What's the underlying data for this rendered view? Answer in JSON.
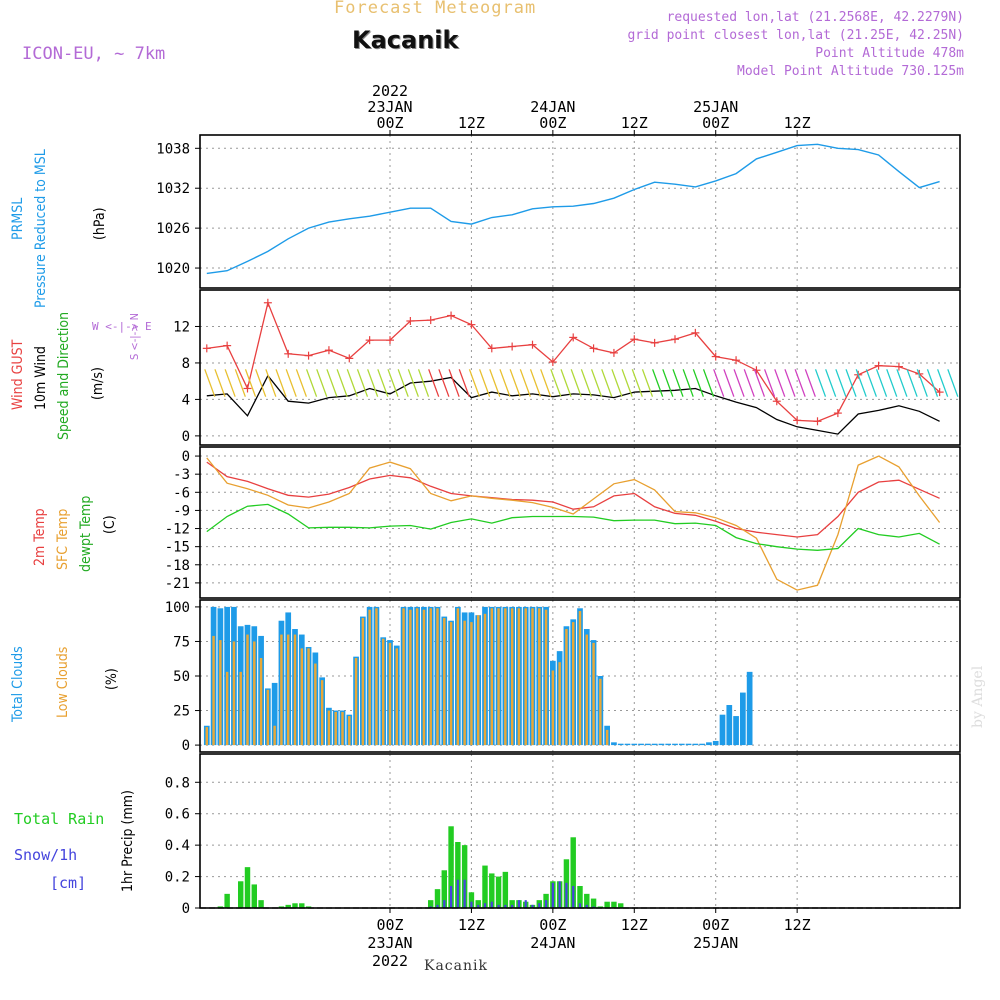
{
  "header": {
    "subtitle": "Forecast Meteogram",
    "location": "Kacanik",
    "model": "ICON-EU, ~ 7km",
    "info_lines": [
      "requested lon,lat (21.2568E, 42.2279N)",
      "grid point closest lon,lat (21.25E, 42.25N)",
      "Point Altitude 478m",
      "Model Point Altitude 730.125m"
    ]
  },
  "time_axis": {
    "top_labels": [
      {
        "lines": [
          "2022",
          "23JAN",
          "00Z"
        ]
      },
      {
        "lines": [
          "12Z"
        ]
      },
      {
        "lines": [
          "24JAN",
          "00Z"
        ]
      },
      {
        "lines": [
          "12Z"
        ]
      },
      {
        "lines": [
          "25JAN",
          "00Z"
        ]
      },
      {
        "lines": [
          "12Z"
        ]
      }
    ],
    "bottom_labels": [
      {
        "lines": [
          "00Z",
          "23JAN",
          "2022"
        ]
      },
      {
        "lines": [
          "12Z"
        ]
      },
      {
        "lines": [
          "00Z",
          "24JAN"
        ]
      },
      {
        "lines": [
          "12Z"
        ]
      },
      {
        "lines": [
          "00Z",
          "25JAN"
        ]
      },
      {
        "lines": [
          "12Z"
        ]
      }
    ]
  },
  "panel_labels": {
    "pressure": {
      "line1": "PRMSL",
      "line2": "Pressure Reduced to MSL",
      "unit": "(hPa)"
    },
    "wind": {
      "line1": "Wind GUST",
      "line2": "10m Wind",
      "line3": "Speed and Direction",
      "unit": "(m/s)",
      "compass": "W <-|-> E",
      "compass2": "S <-|-> N"
    },
    "temp": {
      "line1": "2m Temp",
      "line2": "SFC Temp",
      "line3": "dewpt Temp",
      "unit": "(C)"
    },
    "clouds": {
      "line1": "Total Clouds",
      "line2": "Low Clouds",
      "unit": "(%)"
    },
    "precip": {
      "unit": "1hr Precip (mm)",
      "legend_rain": "Total  Rain",
      "legend_snow": "Snow/1h",
      "legend_snow_unit": "[cm]"
    }
  },
  "footer": {
    "name": "Kacanik",
    "watermark": "by Angel"
  },
  "colors": {
    "pressure": "#1e9be8",
    "gust": "#e84040",
    "wind10": "#000000",
    "t2m": "#e84040",
    "tsfc": "#e8a030",
    "dewpt": "#22cc22",
    "total_cloud": "#1e9be8",
    "low_cloud": "#e8a838",
    "rain": "#22cc22",
    "snow": "#4444dd"
  },
  "chart_data": [
    {
      "type": "line",
      "name": "pressure",
      "x_hours": [
        -27,
        -24,
        -21,
        -18,
        -15,
        -12,
        -9,
        -6,
        -3,
        0,
        3,
        6,
        9,
        12,
        15,
        18,
        21,
        24,
        27,
        30,
        33,
        36,
        39,
        42,
        45,
        48,
        51,
        54,
        57,
        60,
        63,
        66,
        69,
        72,
        75,
        78,
        81
      ],
      "series": [
        {
          "name": "PRMSL",
          "values": [
            1019.2,
            1019.6,
            1021.0,
            1022.5,
            1024.4,
            1026.0,
            1026.9,
            1027.4,
            1027.8,
            1028.4,
            1029.0,
            1029.0,
            1027.0,
            1026.6,
            1027.6,
            1028.0,
            1028.9,
            1029.2,
            1029.3,
            1029.7,
            1030.5,
            1031.8,
            1032.9,
            1032.6,
            1032.2,
            1033.1,
            1034.2,
            1036.4,
            1037.4,
            1038.4,
            1038.6,
            1038.0,
            1037.8,
            1037.0,
            1034.5,
            1032.1,
            1033.0
          ]
        }
      ],
      "ylim": [
        1017,
        1040
      ],
      "yticks": [
        1020,
        1026,
        1032,
        1038
      ]
    },
    {
      "type": "line",
      "name": "wind",
      "x_hours": [
        -27,
        -24,
        -21,
        -18,
        -15,
        -12,
        -9,
        -6,
        -3,
        0,
        3,
        6,
        9,
        12,
        15,
        18,
        21,
        24,
        27,
        30,
        33,
        36,
        39,
        42,
        45,
        48,
        51,
        54,
        57,
        60,
        63,
        66,
        69,
        72,
        75,
        78,
        81
      ],
      "series": [
        {
          "name": "Wind GUST",
          "values": [
            9.6,
            9.9,
            5.2,
            14.6,
            9.0,
            8.8,
            9.4,
            8.5,
            10.5,
            10.5,
            12.6,
            12.7,
            13.2,
            12.2,
            9.6,
            9.8,
            10.0,
            8.1,
            10.8,
            9.6,
            9.1,
            10.6,
            10.2,
            10.6,
            11.3,
            8.7,
            8.3,
            7.2,
            3.8,
            1.7,
            1.6,
            2.5,
            6.7,
            7.7,
            7.6,
            6.8,
            4.8
          ]
        },
        {
          "name": "10m Wind",
          "values": [
            4.4,
            4.6,
            2.2,
            6.6,
            3.8,
            3.6,
            4.2,
            4.4,
            5.2,
            4.6,
            5.8,
            6.0,
            6.4,
            4.2,
            4.8,
            4.4,
            4.6,
            4.3,
            4.6,
            4.5,
            4.2,
            4.8,
            4.9,
            5.0,
            5.2,
            4.4,
            3.7,
            3.1,
            1.8,
            1.0,
            0.6,
            0.2,
            2.4,
            2.8,
            3.3,
            2.7,
            1.6
          ]
        }
      ],
      "ylim": [
        -1,
        16
      ],
      "yticks": [
        0,
        4,
        8,
        12
      ]
    },
    {
      "type": "line",
      "name": "temp",
      "x_hours": [
        -27,
        -24,
        -21,
        -18,
        -15,
        -12,
        -9,
        -6,
        -3,
        0,
        3,
        6,
        9,
        12,
        15,
        18,
        21,
        24,
        27,
        30,
        33,
        36,
        39,
        42,
        45,
        48,
        51,
        54,
        57,
        60,
        63,
        66,
        69,
        72,
        75,
        78,
        81
      ],
      "series": [
        {
          "name": "2m Temp",
          "values": [
            -1.0,
            -3.4,
            -4.2,
            -5.4,
            -6.5,
            -6.8,
            -6.3,
            -5.2,
            -3.8,
            -3.2,
            -3.6,
            -5.0,
            -6.2,
            -6.6,
            -6.9,
            -7.2,
            -7.3,
            -7.6,
            -8.8,
            -8.4,
            -6.6,
            -6.2,
            -8.4,
            -9.5,
            -9.8,
            -10.8,
            -12.0,
            -12.6,
            -13.0,
            -13.4,
            -13.0,
            -10.0,
            -6.0,
            -4.3,
            -4.0,
            -5.5,
            -7.0
          ]
        },
        {
          "name": "SFC Temp",
          "values": [
            -0.3,
            -4.5,
            -5.4,
            -6.5,
            -8.1,
            -8.6,
            -7.6,
            -6.2,
            -2.0,
            -1.0,
            -2.1,
            -6.2,
            -7.4,
            -6.6,
            -7.0,
            -7.3,
            -7.7,
            -8.5,
            -9.6,
            -7.1,
            -4.6,
            -3.9,
            -5.6,
            -9.2,
            -9.4,
            -10.2,
            -11.5,
            -13.6,
            -20.4,
            -22.2,
            -21.4,
            -13.0,
            -1.5,
            0.0,
            -1.8,
            -6.6,
            -11.0
          ]
        },
        {
          "name": "dewpt Temp",
          "values": [
            -12.5,
            -10.0,
            -8.3,
            -8.0,
            -9.6,
            -11.9,
            -11.8,
            -11.8,
            -11.9,
            -11.6,
            -11.5,
            -12.1,
            -11.0,
            -10.4,
            -11.1,
            -10.2,
            -10.0,
            -10.0,
            -10.0,
            -10.1,
            -10.7,
            -10.6,
            -10.6,
            -11.2,
            -11.1,
            -11.5,
            -13.5,
            -14.5,
            -15.0,
            -15.4,
            -15.6,
            -15.3,
            -12.0,
            -13.0,
            -13.4,
            -12.8,
            -14.6
          ]
        }
      ],
      "ylim": [
        -23.5,
        1.5
      ],
      "yticks": [
        0,
        -3,
        -6,
        -9,
        -12,
        -15,
        -18,
        -21
      ]
    },
    {
      "type": "bar",
      "name": "clouds",
      "x_hours": [
        -27,
        -26,
        -25,
        -24,
        -23,
        -22,
        -21,
        -20,
        -19,
        -18,
        -17,
        -16,
        -15,
        -14,
        -13,
        -12,
        -11,
        -10,
        -9,
        -8,
        -7,
        -6,
        -5,
        -4,
        -3,
        -2,
        -1,
        0,
        1,
        2,
        3,
        4,
        5,
        6,
        7,
        8,
        9,
        10,
        11,
        12,
        13,
        14,
        15,
        16,
        17,
        18,
        19,
        20,
        21,
        22,
        23,
        24,
        25,
        26,
        27,
        28,
        29,
        30,
        31,
        32,
        33,
        34,
        35,
        36,
        37,
        38,
        39,
        40,
        41,
        42,
        43,
        44,
        45,
        46,
        47,
        48,
        49,
        50,
        51,
        52,
        53,
        54,
        55,
        56,
        57,
        58,
        59,
        60,
        61,
        62,
        63,
        64,
        65,
        66,
        67,
        68,
        69,
        70,
        71,
        72,
        73,
        74,
        75,
        76,
        77,
        78,
        79,
        80,
        81
      ],
      "series": [
        {
          "name": "Total Clouds",
          "values": [
            14,
            100,
            99,
            100,
            100,
            86,
            87,
            86,
            79,
            41,
            45,
            90,
            96,
            84,
            80,
            71,
            67,
            49,
            27,
            25,
            25,
            22,
            64,
            93,
            100,
            100,
            78,
            76,
            72,
            100,
            100,
            100,
            100,
            100,
            100,
            93,
            90,
            100,
            96,
            96,
            94,
            100,
            100,
            100,
            100,
            100,
            100,
            100,
            100,
            100,
            100,
            61,
            68,
            86,
            91,
            99,
            84,
            76,
            50,
            14,
            2,
            1,
            1,
            1,
            1,
            1,
            1,
            1,
            1,
            1,
            1,
            1,
            1,
            1,
            2,
            3,
            22,
            29,
            21,
            38,
            53
          ]
        },
        {
          "name": "Low Clouds",
          "values": [
            13,
            79,
            76,
            53,
            75,
            53,
            80,
            75,
            63,
            40,
            14,
            80,
            80,
            80,
            70,
            70,
            59,
            47,
            25,
            24,
            24,
            21,
            63,
            92,
            98,
            99,
            77,
            74,
            70,
            99,
            98,
            99,
            98,
            99,
            99,
            92,
            89,
            99,
            90,
            89,
            94,
            95,
            99,
            99,
            99,
            99,
            99,
            99,
            99,
            99,
            98,
            54,
            60,
            84,
            89,
            97,
            80,
            74,
            48,
            11,
            0,
            0,
            0,
            0,
            0,
            0,
            0,
            0,
            0,
            0,
            0,
            0,
            0,
            0,
            0,
            0,
            0,
            0,
            0,
            0,
            0
          ]
        }
      ],
      "ylim": [
        -5,
        105
      ],
      "yticks": [
        0,
        25,
        50,
        75,
        100
      ]
    },
    {
      "type": "bar",
      "name": "precip",
      "x_hours": [
        -27,
        -26,
        -25,
        -24,
        -23,
        -22,
        -21,
        -20,
        -19,
        -18,
        -17,
        -16,
        -15,
        -14,
        -13,
        -12,
        -11,
        -10,
        -9,
        -8,
        -7,
        -6,
        -5,
        -4,
        -3,
        -2,
        -1,
        0,
        1,
        2,
        3,
        4,
        5,
        6,
        7,
        8,
        9,
        10,
        11,
        12,
        13,
        14,
        15,
        16,
        17,
        18,
        19,
        20,
        21,
        22,
        23,
        24,
        25,
        26,
        27,
        28,
        29,
        30,
        31,
        32,
        33,
        34,
        35,
        36,
        37,
        38,
        39,
        40,
        41,
        42,
        43,
        44,
        45,
        46,
        47,
        48,
        49,
        50,
        51,
        52,
        53,
        54,
        55,
        56,
        57,
        58,
        59,
        60,
        61,
        62,
        63,
        64,
        65,
        66,
        67,
        68,
        69,
        70,
        71,
        72,
        73,
        74,
        75,
        76,
        77,
        78,
        79,
        80,
        81
      ],
      "series": [
        {
          "name": "Total Rain",
          "values": [
            0,
            0,
            0.01,
            0.09,
            0,
            0.17,
            0.26,
            0.15,
            0.05,
            0,
            0,
            0.01,
            0.02,
            0.03,
            0.03,
            0.01,
            0,
            0,
            0,
            0,
            0,
            0,
            0,
            0,
            0,
            0,
            0,
            0,
            0,
            0,
            0,
            0,
            0,
            0.05,
            0.12,
            0.24,
            0.52,
            0.42,
            0.4,
            0.1,
            0.05,
            0.27,
            0.22,
            0.2,
            0.23,
            0.05,
            0.05,
            0.04,
            0.02,
            0.05,
            0.09,
            0.17,
            0.17,
            0.31,
            0.45,
            0.14,
            0.09,
            0.06,
            0.01,
            0.04,
            0.04,
            0.03,
            0,
            0,
            0,
            0,
            0,
            0,
            0,
            0,
            0,
            0,
            0,
            0,
            0,
            0,
            0,
            0,
            0,
            0,
            0,
            0
          ]
        },
        {
          "name": "Snow/1h",
          "values": [
            0,
            0,
            0,
            0,
            0,
            0,
            0,
            0,
            0,
            0,
            0,
            0,
            0,
            0,
            0,
            0,
            0,
            0,
            0,
            0,
            0,
            0,
            0,
            0,
            0,
            0,
            0,
            0,
            0,
            0,
            0,
            0,
            0,
            0.01,
            0.02,
            0.05,
            0.14,
            0.18,
            0.18,
            0.04,
            0.02,
            0.03,
            0.04,
            0.02,
            0.02,
            0.02,
            0.05,
            0.05,
            0.02,
            0.03,
            0.05,
            0.16,
            0.17,
            0.16,
            0.14,
            0.03,
            0.02,
            0.01,
            0,
            0,
            0,
            0,
            0,
            0,
            0,
            0,
            0,
            0,
            0,
            0,
            0,
            0,
            0,
            0,
            0,
            0,
            0,
            0,
            0,
            0,
            0,
            0
          ]
        }
      ],
      "ylim": [
        0,
        0.98
      ],
      "yticks": [
        0,
        0.2,
        0.4,
        0.6,
        0.8
      ]
    }
  ]
}
